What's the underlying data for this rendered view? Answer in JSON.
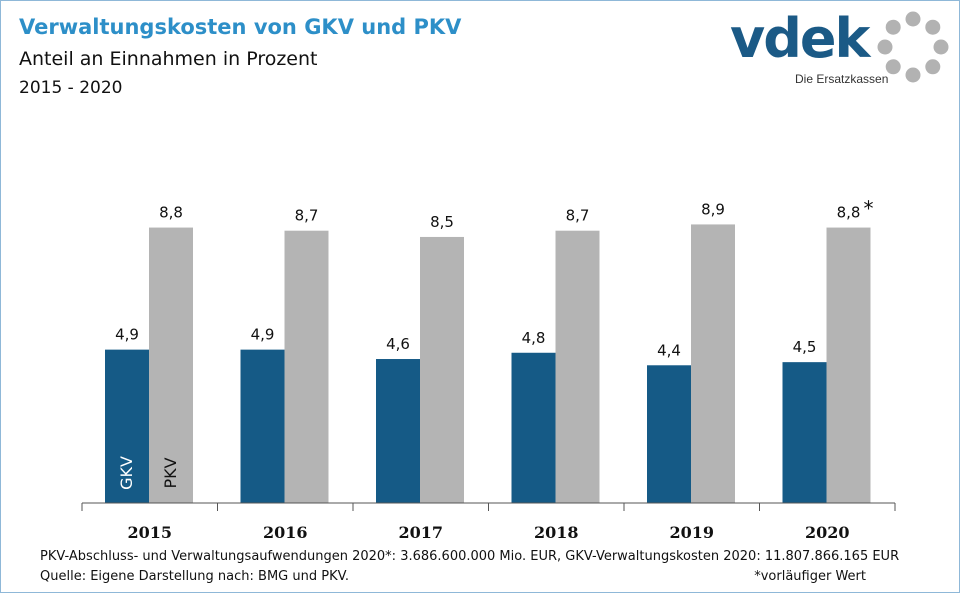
{
  "header": {
    "title": "Verwaltungskosten von GKV und PKV",
    "subtitle": "Anteil an Einnahmen in Prozent",
    "period": "2015 - 2020"
  },
  "logo": {
    "wordmark": "vdek",
    "tagline": "Die Ersatzkassen"
  },
  "chart_data": {
    "type": "bar",
    "categories": [
      "2015",
      "2016",
      "2017",
      "2018",
      "2019",
      "2020"
    ],
    "series": [
      {
        "name": "GKV",
        "values": [
          4.9,
          4.9,
          4.6,
          4.8,
          4.4,
          4.5
        ],
        "labels": [
          "4,9",
          "4,9",
          "4,6",
          "4,8",
          "4,4",
          "4,5"
        ],
        "color": "#155a86"
      },
      {
        "name": "PKV",
        "values": [
          8.8,
          8.7,
          8.5,
          8.7,
          8.9,
          8.8
        ],
        "labels": [
          "8,8",
          "8,7",
          "8,5",
          "8,7",
          "8,9",
          "8,8"
        ],
        "color": "#b4b4b4"
      }
    ],
    "annotation": "*",
    "ylim": [
      0,
      10
    ]
  },
  "footer": {
    "note": "PKV-Abschluss- und Verwaltungsaufwendungen 2020*: 3.686.600.000 Mio. EUR, GKV-Verwaltungskosten 2020: 11.807.866.165 EUR",
    "source": "Quelle: Eigene Darstellung nach: BMG und PKV.",
    "footnote": "*vorläufiger Wert"
  },
  "colors": {
    "accent": "#2d8fc8",
    "brand": "#1b5a86",
    "gkv": "#155a86",
    "pkv": "#b4b4b4",
    "logo_ring": "#b2b2b2"
  }
}
